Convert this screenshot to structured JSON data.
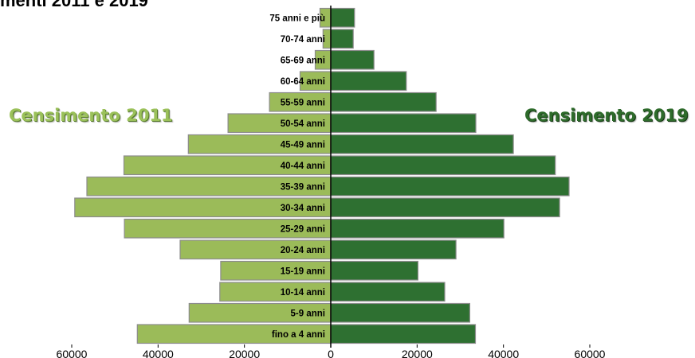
{
  "chart_data": {
    "type": "bar",
    "title": "menti 2011 e 2019",
    "categories": [
      "fino a 4 anni",
      "5-9 anni",
      "10-14 anni",
      "15-19 anni",
      "20-24 anni",
      "25-29 anni",
      "30-34 anni",
      "35-39 anni",
      "40-44 anni",
      "45-49 anni",
      "50-54 anni",
      "55-59 anni",
      "60-64 anni",
      "65-69 anni",
      "70-74 anni",
      "75 anni e più"
    ],
    "series": [
      {
        "name": "Censimento 2011",
        "color": "#9bbb59",
        "side": "left",
        "values": [
          44800,
          32800,
          25700,
          25500,
          34900,
          47800,
          59300,
          56500,
          47900,
          33000,
          23800,
          14200,
          7100,
          3600,
          1800,
          2500
        ]
      },
      {
        "name": "Censimento 2019",
        "color": "#2e7031",
        "side": "right",
        "values": [
          33500,
          32200,
          26400,
          20200,
          29000,
          40100,
          53000,
          55200,
          52000,
          42300,
          33600,
          24400,
          17500,
          10000,
          5200,
          5500
        ]
      }
    ],
    "xticks": [
      "60000",
      "40000",
      "20000",
      "0",
      "20000",
      "40000",
      "60000"
    ],
    "xlim": [
      -60000,
      60000
    ],
    "legend": "labels beside each half",
    "grid": false
  }
}
